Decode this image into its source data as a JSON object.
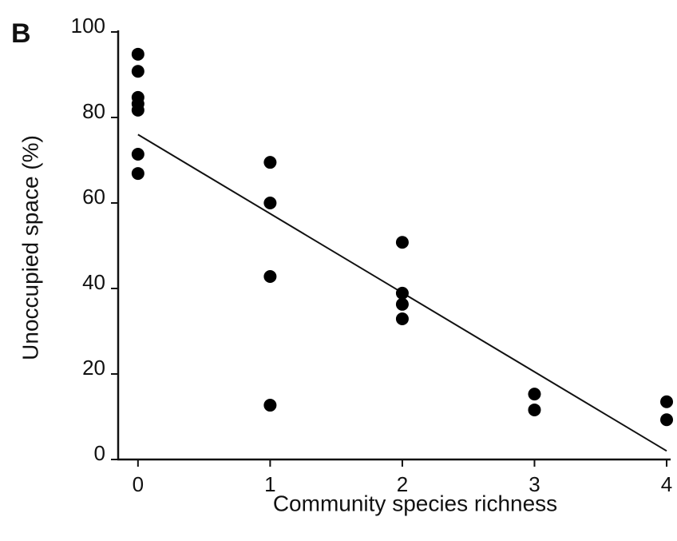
{
  "chart_data": {
    "type": "scatter",
    "panel_label": "B",
    "x_label": "Community species richness",
    "y_label": "Unoccupied space (%)",
    "x": [
      0,
      0,
      0,
      0,
      0,
      0,
      0,
      1,
      1,
      1,
      1,
      2,
      2,
      2,
      2,
      3,
      3,
      4,
      4
    ],
    "values": [
      94.8,
      90.8,
      84.7,
      83.2,
      81.7,
      71.4,
      66.9,
      69.5,
      60,
      42.8,
      12.7,
      50.8,
      38.9,
      36.3,
      32.9,
      15.3,
      11.6,
      13.5,
      9.3
    ],
    "color": "#000000",
    "fit": {
      "x": [
        0,
        4
      ],
      "y": [
        76,
        2
      ]
    },
    "xlim": [
      -0.15,
      4.03
    ],
    "xticks": [
      0,
      1,
      2,
      3,
      4
    ],
    "ylim": [
      0,
      100
    ],
    "yticks": [
      0,
      20,
      40,
      60,
      80,
      100
    ]
  }
}
